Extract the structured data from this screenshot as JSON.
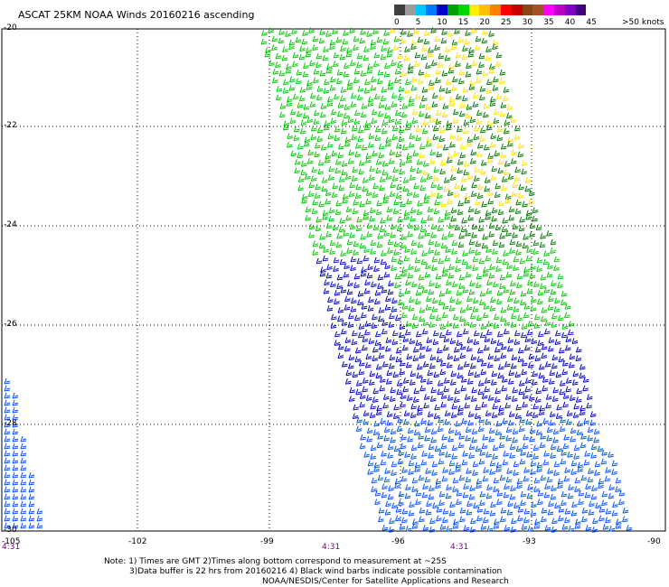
{
  "title": "ASCAT 25KM NOAA Winds 20160216 ascending",
  "colorbar": {
    "colors": [
      "#3f3f3f",
      "#9b9b9b",
      "#00c8ff",
      "#0078ff",
      "#0000c8",
      "#00a000",
      "#00d700",
      "#fff000",
      "#ffc000",
      "#ff8000",
      "#ff0000",
      "#c80000",
      "#8b4513",
      "#a0522d",
      "#ff00ff",
      "#c000c0",
      "#8000c0",
      "#400080"
    ],
    "labels": [
      "0",
      "5",
      "10",
      "15",
      "20",
      "25",
      "30",
      "35",
      "40",
      "45"
    ],
    "unit": ">50 knots"
  },
  "axes": {
    "y_labels": [
      "-20",
      "-22",
      "-24",
      "-26",
      "-28",
      "-30"
    ],
    "x_labels": [
      "-105",
      "-102",
      "-99",
      "-96",
      "-93",
      "-90"
    ]
  },
  "pass_times": [
    "4:31",
    "4:31",
    "4:31"
  ],
  "notes": {
    "line1": "Note: 1) Times are GMT 2)Times along bottom correspond to measurement at ~25S",
    "line2": "3)Data buffer is 22 hrs from 20160216 4) Black wind barbs indicate possible contamination",
    "line3": "NOAA/NESDIS/Center for Satellite Applications and Research"
  },
  "wind_colors": {
    "dark_green": "#007800",
    "light_green": "#00c800",
    "yellow": "#ffe000",
    "dark_blue": "#0000c0",
    "blue": "#0050ff"
  }
}
